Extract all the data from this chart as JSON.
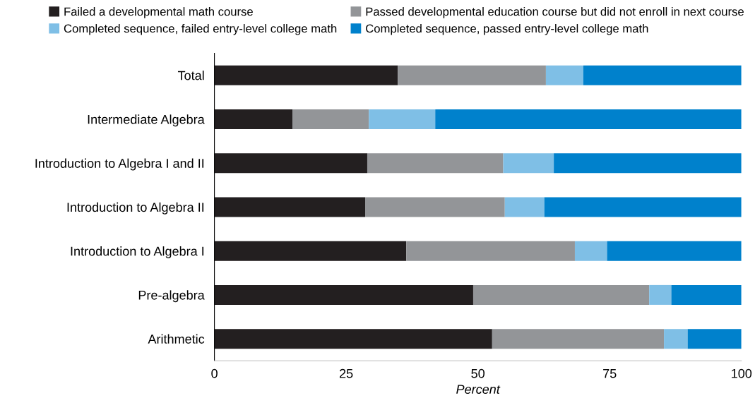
{
  "chart_data": {
    "type": "bar",
    "orientation": "horizontal",
    "stacked": true,
    "categories": [
      "Total",
      "Intermediate Algebra",
      "Introduction to Algebra I and II",
      "Introduction to Algebra II",
      "Introduction to Algebra I",
      "Pre-algebra",
      "Arithmetic"
    ],
    "series": [
      {
        "name": "Failed a developmental math course",
        "color": "#231f20",
        "values": [
          34.8,
          14.8,
          29.0,
          28.6,
          36.4,
          49.1,
          52.7
        ]
      },
      {
        "name": "Passed developmental education course but did not enroll in next course",
        "color": "#939598",
        "values": [
          28.1,
          14.5,
          25.8,
          26.5,
          32.0,
          33.4,
          32.6
        ]
      },
      {
        "name": "Completed sequence, failed entry-level college math",
        "color": "#7fbfe6",
        "values": [
          7.1,
          12.6,
          9.6,
          7.5,
          6.1,
          4.2,
          4.5
        ]
      },
      {
        "name": "Completed sequence, passed entry-level college math",
        "color": "#0081cc",
        "values": [
          30.0,
          58.1,
          35.6,
          37.4,
          25.5,
          13.3,
          10.2
        ]
      }
    ],
    "xlabel": "Percent",
    "xlim": [
      0,
      100
    ],
    "xticks": [
      0,
      25,
      50,
      75,
      100
    ],
    "grid": false,
    "legend": "top"
  }
}
